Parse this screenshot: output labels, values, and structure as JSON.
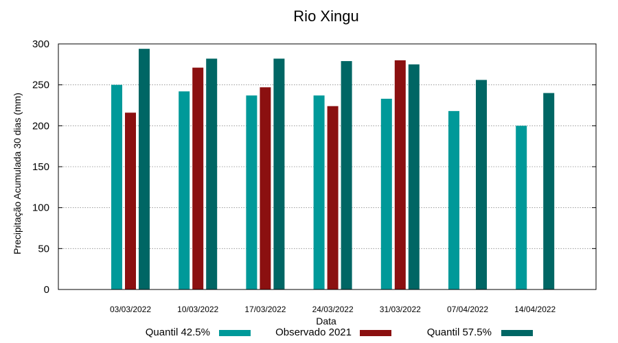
{
  "chart_data": {
    "type": "bar",
    "title": "Rio Xingu",
    "xlabel": "Data",
    "ylabel": "Precipitação Acumulada 30 dias (mm)",
    "ylim": [
      0,
      300
    ],
    "yticks": [
      0,
      50,
      100,
      150,
      200,
      250,
      300
    ],
    "grid": true,
    "legend_position": "bottom",
    "categories": [
      "03/03/2022",
      "10/03/2022",
      "17/03/2022",
      "24/03/2022",
      "31/03/2022",
      "07/04/2022",
      "14/04/2022"
    ],
    "series": [
      {
        "name": "Quantil 42.5%",
        "color": "#009999",
        "values": [
          250,
          242,
          237,
          237,
          233,
          218,
          200
        ]
      },
      {
        "name": "Observado 2021",
        "color": "#8b1010",
        "values": [
          216,
          271,
          247,
          224,
          280,
          null,
          null
        ]
      },
      {
        "name": "Quantil 57.5%",
        "color": "#006664",
        "values": [
          294,
          282,
          282,
          279,
          275,
          256,
          240
        ]
      }
    ]
  }
}
